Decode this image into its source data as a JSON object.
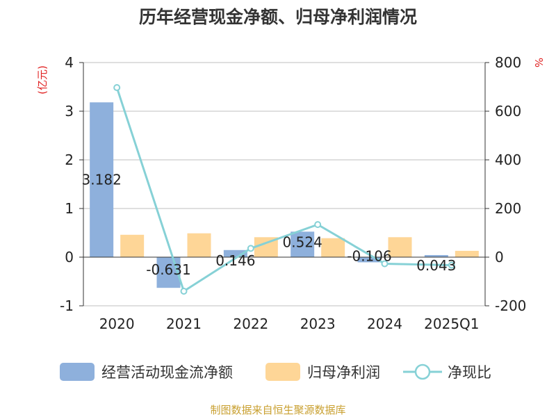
{
  "chart_data": {
    "type": "bar",
    "title": "历年经营现金净额、归母净利润情况",
    "categories": [
      "2020",
      "2021",
      "2022",
      "2023",
      "2024",
      "2025Q1"
    ],
    "series": [
      {
        "name": "经营活动现金流净额",
        "type": "bar",
        "axis": "left",
        "color": "#8eb0dc",
        "values": [
          3.182,
          -0.631,
          0.146,
          0.524,
          -0.106,
          0.043
        ],
        "labels": [
          "3.182",
          "-0.631",
          "0.146",
          "0.524",
          "-0.106",
          "0.043"
        ]
      },
      {
        "name": "归母净利润",
        "type": "bar",
        "axis": "left",
        "color": "#fed697",
        "values": [
          0.46,
          0.49,
          0.41,
          0.39,
          0.41,
          0.13
        ]
      },
      {
        "name": "净现比",
        "type": "line",
        "axis": "right",
        "color": "#86d1d6",
        "values": [
          697,
          -140,
          36,
          134,
          -27,
          -33
        ]
      }
    ],
    "y_left": {
      "unit": "(亿元)",
      "ylim": [
        -1,
        4
      ],
      "ticks": [
        "-1",
        "0",
        "1",
        "2",
        "3",
        "4"
      ]
    },
    "y_right": {
      "unit": "%",
      "ylim": [
        -200,
        800
      ],
      "ticks": [
        "-200",
        "0",
        "200",
        "400",
        "600",
        "800"
      ]
    },
    "grid": true,
    "legend_position": "bottom"
  },
  "source": "制图数据来自恒生聚源数据库",
  "colors": {
    "unit_red": "#e02020",
    "source_gold": "#c9a030",
    "grid": "#cccccc",
    "axis": "#333333"
  }
}
